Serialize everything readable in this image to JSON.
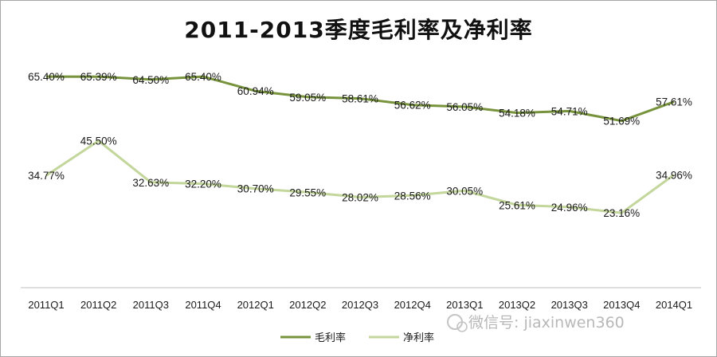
{
  "chart_data": {
    "type": "line",
    "title": "2011-2013季度毛利率及净利率",
    "categories": [
      "2011Q1",
      "2011Q2",
      "2011Q3",
      "2011Q4",
      "2012Q1",
      "2012Q2",
      "2012Q3",
      "2012Q4",
      "2013Q1",
      "2013Q2",
      "2013Q3",
      "2013Q4",
      "2014Q1"
    ],
    "series": [
      {
        "name": "毛利率",
        "values": [
          65.4,
          65.39,
          64.5,
          65.4,
          60.94,
          59.05,
          58.61,
          56.62,
          56.05,
          54.18,
          54.71,
          51.69,
          57.61
        ],
        "labels": [
          "65.40%",
          "65.39%",
          "64.50%",
          "65.40%",
          "60.94%",
          "59.05%",
          "58.61%",
          "56.62%",
          "56.05%",
          "54.18%",
          "54.71%",
          "51.69%",
          "57.61%"
        ],
        "color": "#77933c"
      },
      {
        "name": "净利率",
        "values": [
          34.77,
          45.5,
          32.63,
          32.2,
          30.7,
          29.55,
          28.02,
          28.56,
          30.05,
          25.61,
          24.96,
          23.16,
          34.96
        ],
        "labels": [
          "34.77%",
          "45.50%",
          "32.63%",
          "32.20%",
          "30.70%",
          "29.55%",
          "28.02%",
          "28.56%",
          "30.05%",
          "25.61%",
          "24.96%",
          "23.16%",
          "34.96%"
        ],
        "color": "#c3d69b"
      }
    ],
    "ylim": [
      0,
      75
    ],
    "grid": false,
    "legend_position": "bottom"
  },
  "watermark": "微信号: jiaxinwen360"
}
